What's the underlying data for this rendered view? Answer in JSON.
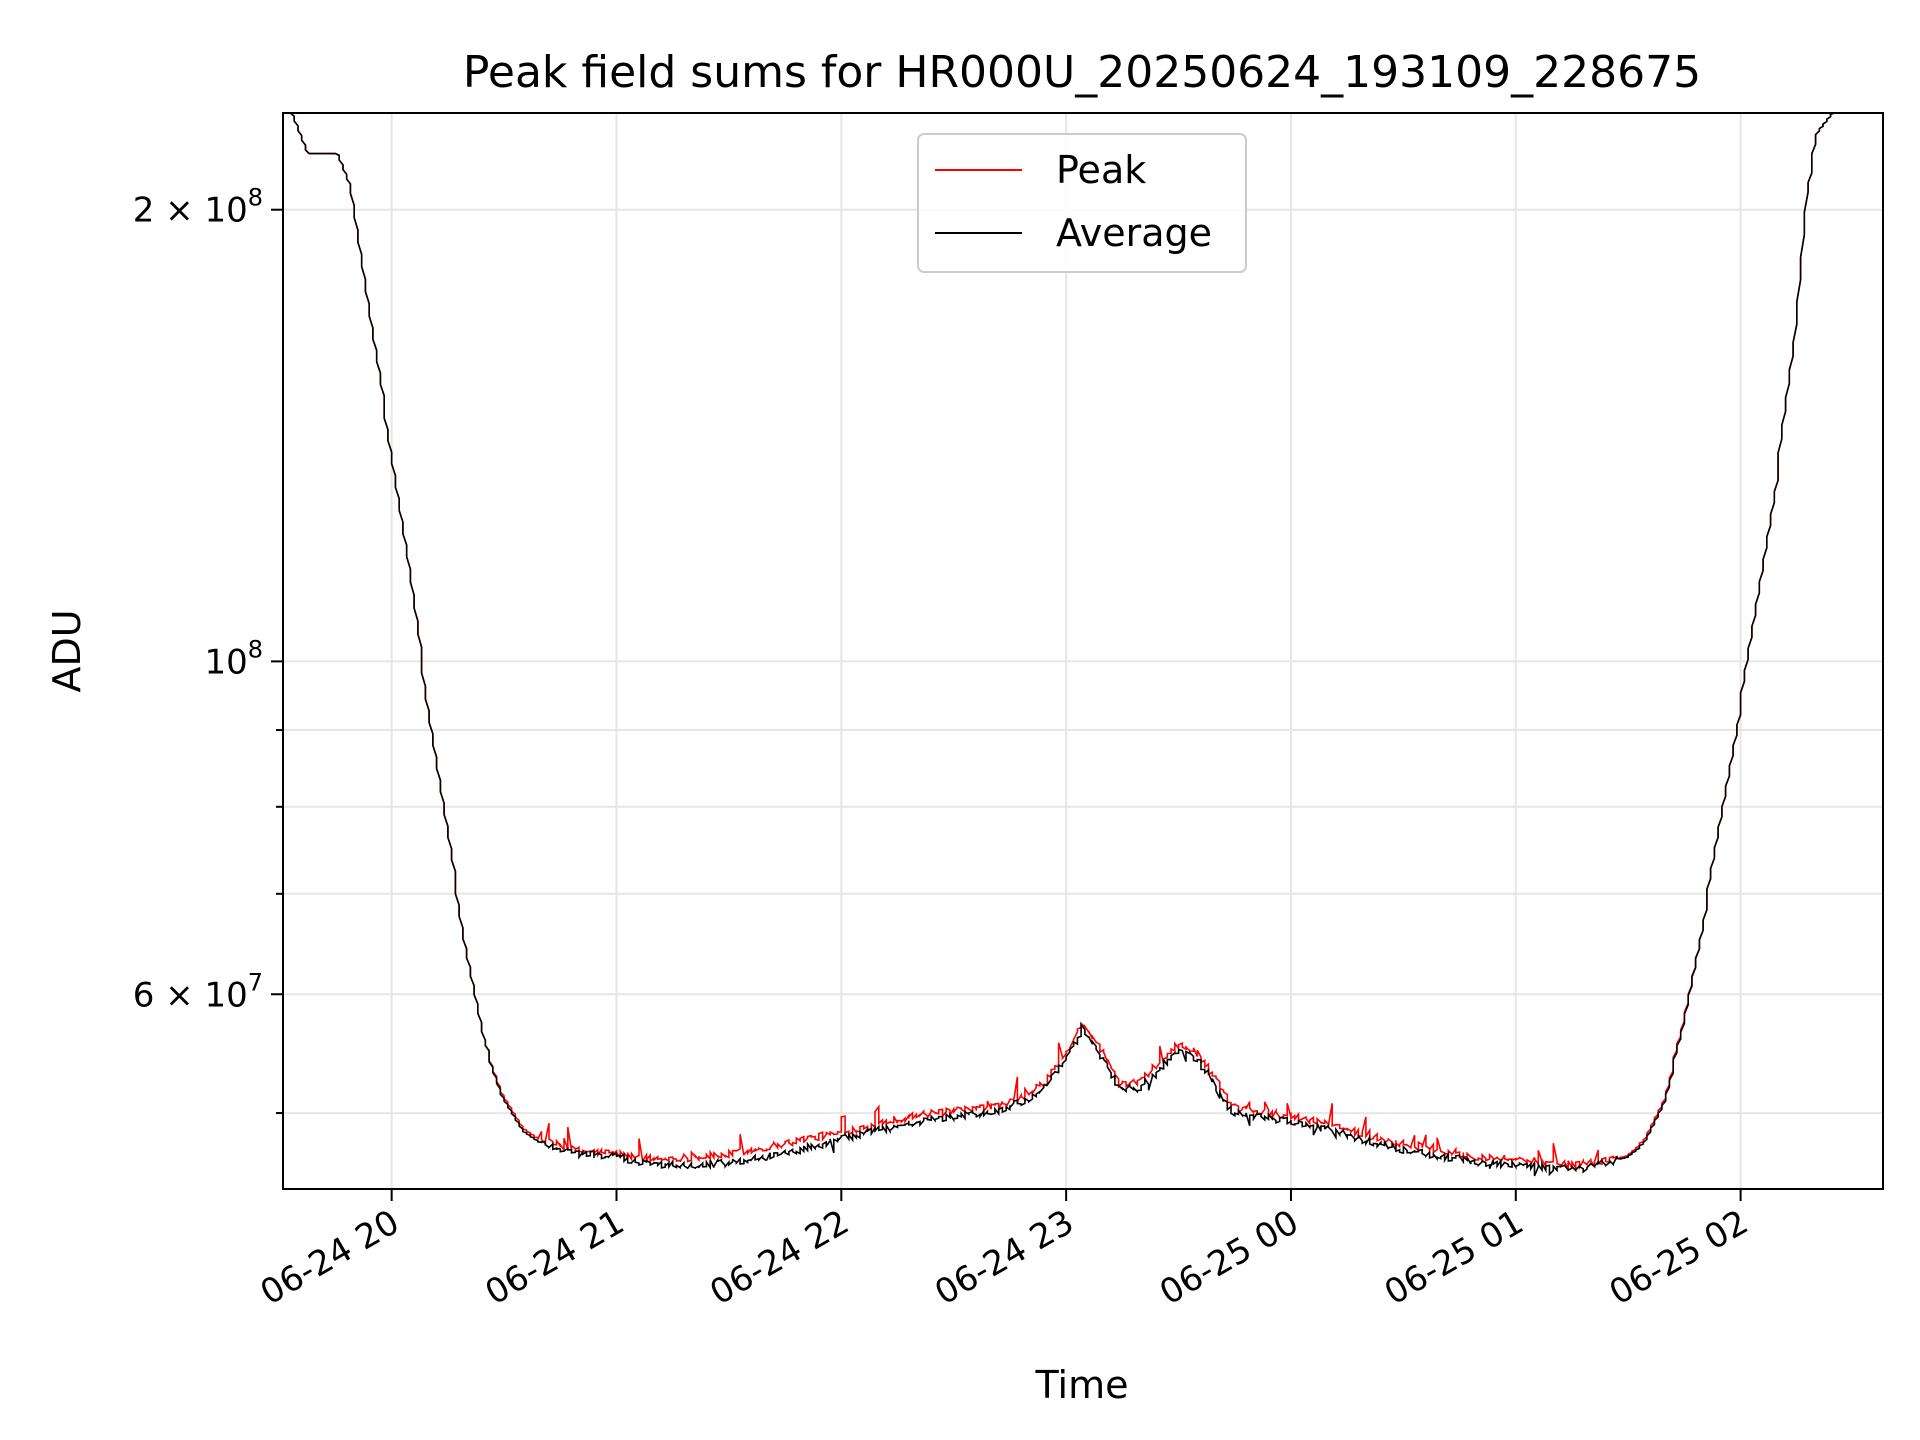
{
  "chart_data": {
    "type": "line",
    "title": "Peak field sums for HR000U_20250624_193109_228675",
    "xlabel": "Time",
    "ylabel": "ADU",
    "yscale": "log",
    "xlim": [
      "2025-06-24 19:31",
      "2025-06-25 02:38"
    ],
    "ylim": [
      44500000,
      232000000
    ],
    "grid": true,
    "legend_location": "upper center",
    "x_ticks": [
      {
        "x": "2025-06-24 20:00",
        "label": "06-24 20"
      },
      {
        "x": "2025-06-24 21:00",
        "label": "06-24 21"
      },
      {
        "x": "2025-06-24 22:00",
        "label": "06-24 22"
      },
      {
        "x": "2025-06-24 23:00",
        "label": "06-24 23"
      },
      {
        "x": "2025-06-25 00:00",
        "label": "06-25 00"
      },
      {
        "x": "2025-06-25 01:00",
        "label": "06-25 01"
      },
      {
        "x": "2025-06-25 02:00",
        "label": "06-25 02"
      }
    ],
    "y_major_ticks": [
      {
        "y": 60000000,
        "mant": "6",
        "exp": "7"
      },
      {
        "y": 100000000,
        "mant": "",
        "exp": "8"
      },
      {
        "y": 200000000,
        "mant": "2",
        "exp": "8"
      }
    ],
    "y_minor_ticks": [
      50000000,
      70000000,
      80000000,
      90000000
    ],
    "x": [
      "2025-06-24 19:31",
      "2025-06-24 19:34",
      "2025-06-24 19:38",
      "2025-06-24 19:43",
      "2025-06-24 19:46",
      "2025-06-24 19:50",
      "2025-06-24 19:55",
      "2025-06-24 20:00",
      "2025-06-24 20:05",
      "2025-06-24 20:10",
      "2025-06-24 20:15",
      "2025-06-24 20:20",
      "2025-06-24 20:25",
      "2025-06-24 20:30",
      "2025-06-24 20:35",
      "2025-06-24 20:40",
      "2025-06-24 20:50",
      "2025-06-24 21:00",
      "2025-06-24 21:05",
      "2025-06-24 21:10",
      "2025-06-24 21:20",
      "2025-06-24 21:30",
      "2025-06-24 21:40",
      "2025-06-24 21:50",
      "2025-06-24 22:00",
      "2025-06-24 22:10",
      "2025-06-24 22:20",
      "2025-06-24 22:30",
      "2025-06-24 22:40",
      "2025-06-24 22:45",
      "2025-06-24 22:50",
      "2025-06-24 22:55",
      "2025-06-24 23:00",
      "2025-06-24 23:05",
      "2025-06-24 23:10",
      "2025-06-24 23:15",
      "2025-06-24 23:20",
      "2025-06-24 23:25",
      "2025-06-24 23:30",
      "2025-06-24 23:35",
      "2025-06-24 23:40",
      "2025-06-24 23:45",
      "2025-06-24 23:50",
      "2025-06-25 00:00",
      "2025-06-25 00:10",
      "2025-06-25 00:20",
      "2025-06-25 00:30",
      "2025-06-25 00:40",
      "2025-06-25 00:50",
      "2025-06-25 01:00",
      "2025-06-25 01:10",
      "2025-06-25 01:15",
      "2025-06-25 01:20",
      "2025-06-25 01:25",
      "2025-06-25 01:30",
      "2025-06-25 01:35",
      "2025-06-25 01:40",
      "2025-06-25 01:45",
      "2025-06-25 01:50",
      "2025-06-25 01:55",
      "2025-06-25 02:00",
      "2025-06-25 02:05",
      "2025-06-25 02:10",
      "2025-06-25 02:15",
      "2025-06-25 02:18",
      "2025-06-25 02:21",
      "2025-06-25 02:25",
      "2025-06-25 02:38"
    ],
    "series": [
      {
        "name": "Peak",
        "color": "#ff0000",
        "values": [
          232000000,
          232000000,
          218000000,
          218000000,
          218000000,
          205000000,
          168000000,
          140000000,
          116000000,
          94000000,
          78000000,
          65000000,
          56000000,
          51500000,
          49000000,
          48000000,
          47200000,
          47000000,
          46800000,
          46600000,
          46700000,
          46900000,
          47400000,
          48000000,
          48500000,
          49200000,
          49800000,
          50100000,
          50400000,
          50800000,
          51300000,
          52500000,
          54500000,
          57500000,
          55000000,
          52200000,
          52500000,
          53800000,
          55500000,
          55000000,
          52800000,
          50400000,
          50200000,
          49800000,
          49200000,
          48400000,
          47700000,
          47200000,
          46800000,
          46600000,
          46300000,
          46200000,
          46300000,
          46500000,
          46800000,
          48000000,
          51000000,
          57000000,
          66000000,
          78000000,
          92000000,
          110000000,
          132000000,
          165000000,
          205000000,
          225000000,
          232000000,
          232000000
        ]
      },
      {
        "name": "Average",
        "color": "#000000",
        "values": [
          232000000,
          232000000,
          218000000,
          218000000,
          218000000,
          205000000,
          168000000,
          140000000,
          116000000,
          94000000,
          78000000,
          65000000,
          56000000,
          51300000,
          48800000,
          47800000,
          47000000,
          46800000,
          46500000,
          46200000,
          46200000,
          46300000,
          46700000,
          47300000,
          48000000,
          48700000,
          49300000,
          49700000,
          50000000,
          50400000,
          51000000,
          52000000,
          54000000,
          57000000,
          54500000,
          51800000,
          52000000,
          53300000,
          55000000,
          54500000,
          52300000,
          50000000,
          49800000,
          49400000,
          48800000,
          48000000,
          47300000,
          46800000,
          46400000,
          46200000,
          46000000,
          45900000,
          46100000,
          46400000,
          46700000,
          47800000,
          50800000,
          56800000,
          66000000,
          78000000,
          92000000,
          110000000,
          132000000,
          165000000,
          205000000,
          225000000,
          232000000,
          232000000
        ]
      }
    ]
  }
}
